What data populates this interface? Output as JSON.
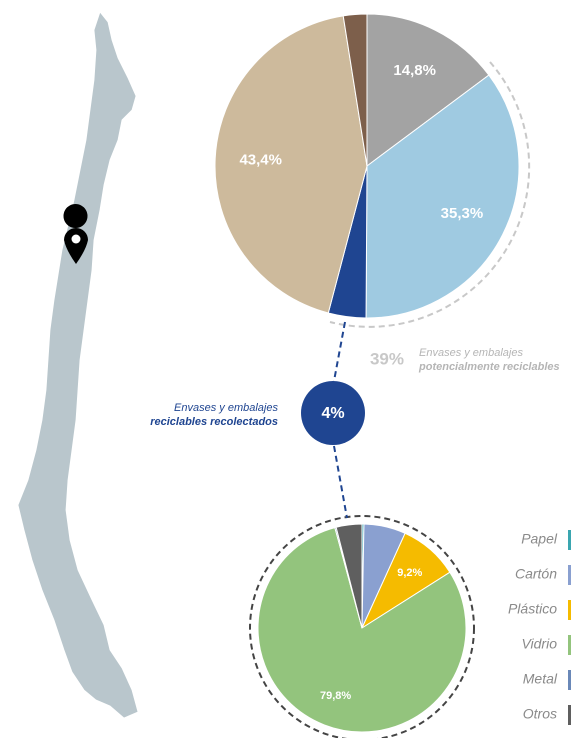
{
  "chart_data": [
    {
      "type": "pie",
      "values": [
        14.8,
        35.3,
        4,
        43.4,
        2.5
      ],
      "value_labels": [
        "14,8%",
        "35,3%",
        null,
        "43,4%",
        null
      ],
      "colors": [
        "#a3a3a3",
        "#9fcae1",
        "#1f4591",
        "#cdba9c",
        "#7d5f4b"
      ],
      "annotations": [
        "39%",
        "Envases y embalajes",
        "potencialmente reciclables",
        "4%",
        "Envases y embalajes",
        "reciclables recolectados"
      ]
    },
    {
      "type": "pie",
      "categories": [
        "Papel",
        "Cartón",
        "Plástico",
        "Vidrio",
        "Metal",
        "Otros"
      ],
      "values": [
        0.3,
        6.5,
        9.2,
        79.8,
        0.2,
        4
      ],
      "value_labels": [
        null,
        null,
        "9,2%",
        "79,8%",
        null,
        null
      ],
      "colors": [
        "#3aa6b0",
        "#8aa0d0",
        "#f5bb00",
        "#93c47d",
        "#6a88b8",
        "#5f5f5f"
      ]
    }
  ]
}
